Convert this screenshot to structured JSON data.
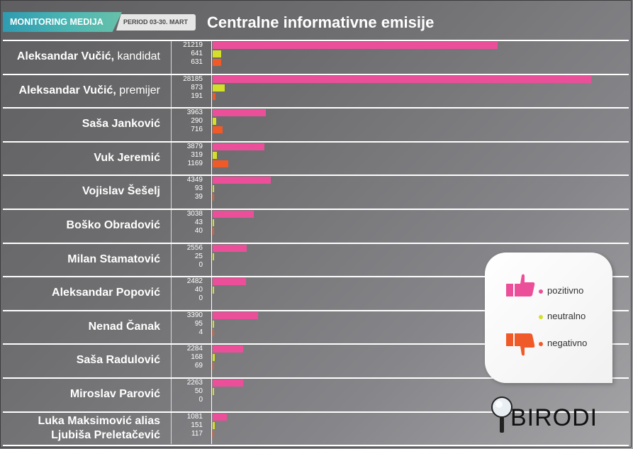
{
  "header": {
    "tag": "MONITORING MEDIJA",
    "period": "PERIOD 03-30. MART",
    "title": "Centralne informativne emisije"
  },
  "colors": {
    "pozitivno": "#ec4f9a",
    "neutralno": "#d4df2a",
    "negativno": "#f05a28"
  },
  "legend": {
    "pozitivno": "pozitivno",
    "neutralno": "neutralno",
    "negativno": "negativno",
    "icons": [
      "thumbs-up-icon",
      "thumbs-down-icon"
    ]
  },
  "logo": {
    "text": "BIRODI",
    "icon": "magnifier-icon"
  },
  "chart_data": {
    "type": "bar",
    "orientation": "horizontal",
    "title": "Centralne informativne emisije",
    "categories": [
      {
        "bold": "Aleksandar Vučić,",
        "rest": " kandidat"
      },
      {
        "bold": "Aleksandar Vučić,",
        "rest": " premijer"
      },
      {
        "bold": "Saša Janković",
        "rest": ""
      },
      {
        "bold": "Vuk Jeremić",
        "rest": ""
      },
      {
        "bold": "Vojislav Šešelj",
        "rest": ""
      },
      {
        "bold": "Boško Obradović",
        "rest": ""
      },
      {
        "bold": "Milan Stamatović",
        "rest": ""
      },
      {
        "bold": "Aleksandar Popović",
        "rest": ""
      },
      {
        "bold": "Nenad Čanak",
        "rest": ""
      },
      {
        "bold": "Saša Radulović",
        "rest": ""
      },
      {
        "bold": "Miroslav Parović",
        "rest": ""
      },
      {
        "bold": "Luka Maksimović alias",
        "rest": "",
        "line2": "Ljubiša Preletačević"
      }
    ],
    "series": [
      {
        "name": "pozitivno",
        "values": [
          21219,
          28185,
          3963,
          3879,
          4349,
          3038,
          2556,
          2482,
          3390,
          2284,
          2263,
          1081
        ]
      },
      {
        "name": "neutralno",
        "values": [
          641,
          873,
          290,
          319,
          93,
          43,
          25,
          40,
          95,
          168,
          50,
          151
        ]
      },
      {
        "name": "negativno",
        "values": [
          631,
          191,
          716,
          1169,
          39,
          40,
          0,
          0,
          4,
          69,
          0,
          117
        ]
      }
    ],
    "xlim": [
      0,
      28185
    ],
    "grid": false,
    "legend": "right"
  }
}
